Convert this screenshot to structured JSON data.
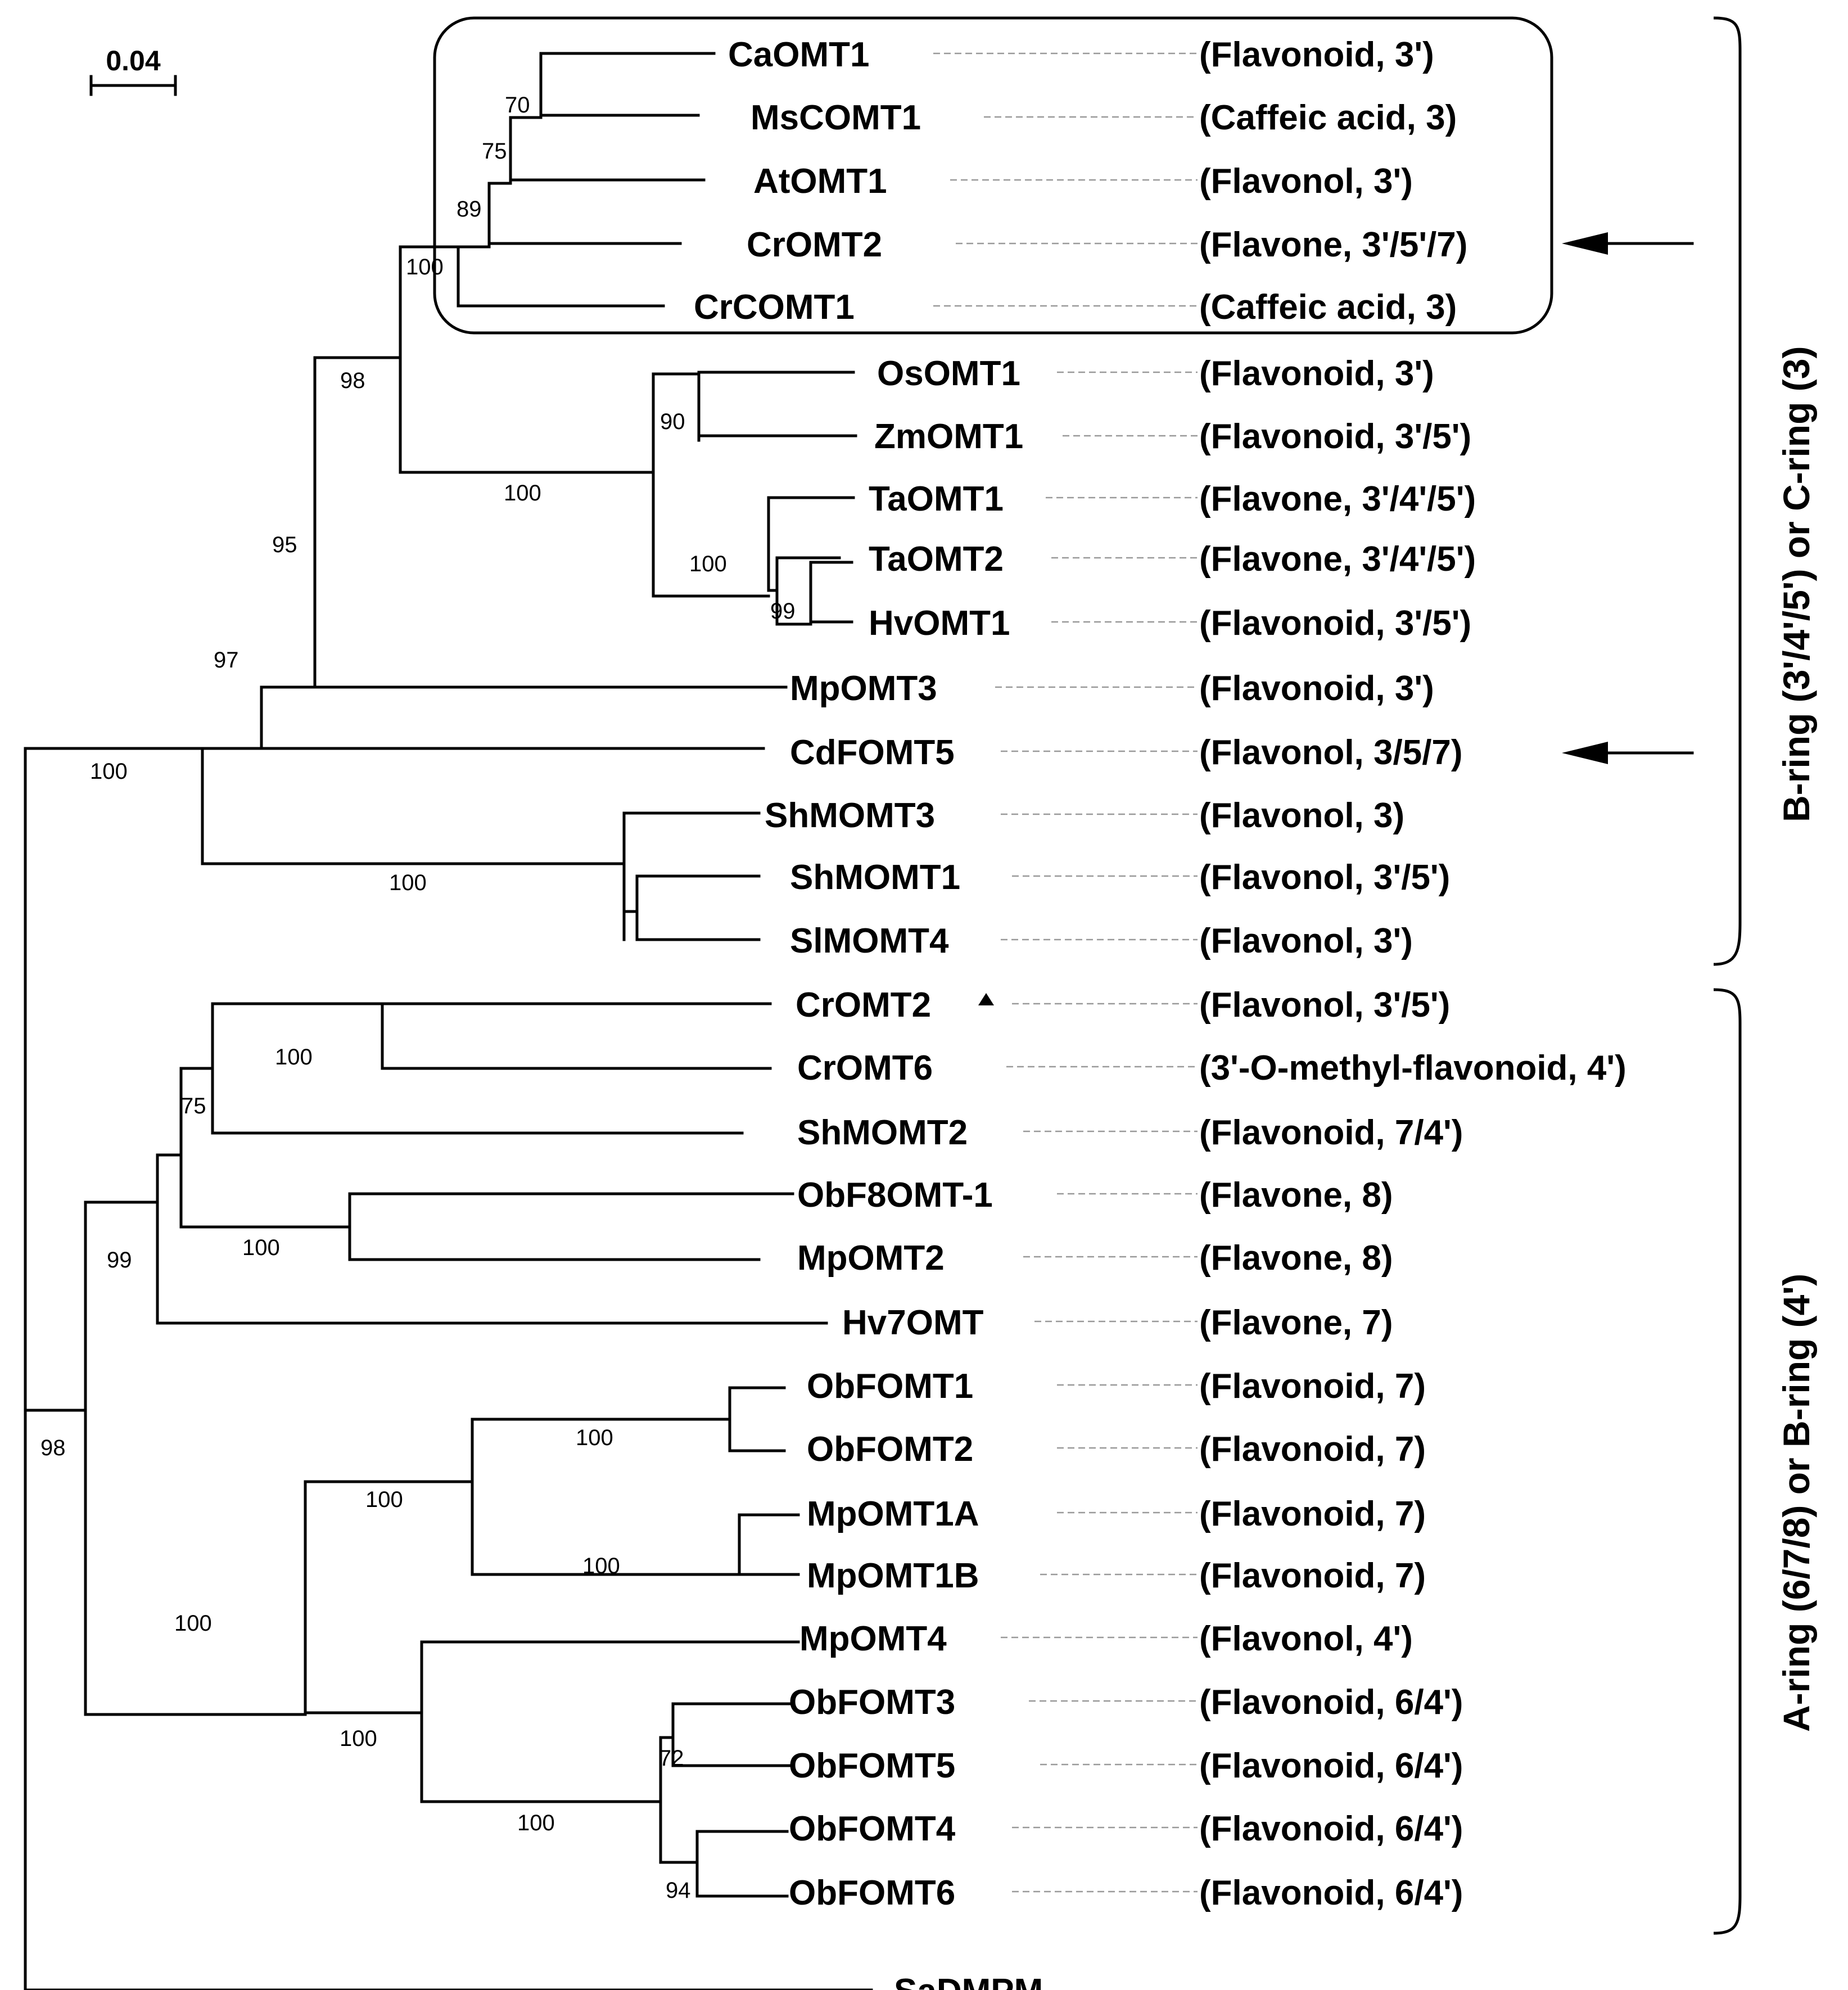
{
  "scale_bar": {
    "label": "0.04"
  },
  "taxa": [
    {
      "name": "CaOMT1",
      "substrate": "(Flavonoid, 3')"
    },
    {
      "name": "MsCOMT1",
      "substrate": "(Caffeic acid, 3)"
    },
    {
      "name": "AtOMT1",
      "substrate": "(Flavonol, 3')"
    },
    {
      "name": "CrOMT2",
      "substrate": "(Flavone, 3'/5'/7)"
    },
    {
      "name": "CrCOMT1",
      "substrate": "(Caffeic acid, 3)"
    },
    {
      "name": "OsOMT1",
      "substrate": "(Flavonoid, 3')"
    },
    {
      "name": "ZmOMT1",
      "substrate": "(Flavonoid, 3'/5')"
    },
    {
      "name": "TaOMT1",
      "substrate": "(Flavone, 3'/4'/5')"
    },
    {
      "name": "TaOMT2",
      "substrate": "(Flavone, 3'/4'/5')"
    },
    {
      "name": "HvOMT1",
      "substrate": "(Flavonoid, 3'/5')"
    },
    {
      "name": "MpOMT3",
      "substrate": "(Flavonoid, 3')"
    },
    {
      "name": "CdFOMT5",
      "substrate": "(Flavonol, 3/5/7)"
    },
    {
      "name": "ShMOMT3",
      "substrate": "(Flavonol, 3)"
    },
    {
      "name": "ShMOMT1",
      "substrate": "(Flavonol, 3'/5')"
    },
    {
      "name": "SlMOMT4",
      "substrate": "(Flavonol, 3')"
    },
    {
      "name": "CrOMT2",
      "substrate": "(Flavonol, 3'/5')"
    },
    {
      "name": "CrOMT6",
      "substrate": "(3'-O-methyl-flavonoid, 4')"
    },
    {
      "name": "ShMOMT2",
      "substrate": "(Flavonoid, 7/4')"
    },
    {
      "name": "ObF8OMT-1",
      "substrate": "(Flavone, 8)"
    },
    {
      "name": "MpOMT2",
      "substrate": "(Flavone, 8)"
    },
    {
      "name": "Hv7OMT",
      "substrate": "(Flavone, 7)"
    },
    {
      "name": "ObFOMT1",
      "substrate": "(Flavonoid, 7)"
    },
    {
      "name": "ObFOMT2",
      "substrate": "(Flavonoid, 7)"
    },
    {
      "name": "MpOMT1A",
      "substrate": "(Flavonoid, 7)"
    },
    {
      "name": "MpOMT1B",
      "substrate": "(Flavonoid, 7)"
    },
    {
      "name": "MpOMT4",
      "substrate": "(Flavonol, 4')"
    },
    {
      "name": "ObFOMT3",
      "substrate": "(Flavonoid, 6/4')"
    },
    {
      "name": "ObFOMT5",
      "substrate": "(Flavonoid, 6/4')"
    },
    {
      "name": "ObFOMT4",
      "substrate": "(Flavonoid, 6/4')"
    },
    {
      "name": "ObFOMT6",
      "substrate": "(Flavonoid, 6/4')"
    },
    {
      "name": "SaDMPM",
      "substrate": ""
    }
  ],
  "bootstrap": [
    "70",
    "75",
    "89",
    "100",
    "98",
    "90",
    "100",
    "100",
    "99",
    "95",
    "97",
    "100",
    "100",
    "100",
    "75",
    "100",
    "99",
    "100",
    "100",
    "100",
    "100",
    "100",
    "72",
    "94",
    "100",
    "98"
  ],
  "groups": {
    "upper": "B-ring (3'/4'/5') or C-ring (3)",
    "lower": "A-ring (6/7/8) or B-ring (4')"
  }
}
